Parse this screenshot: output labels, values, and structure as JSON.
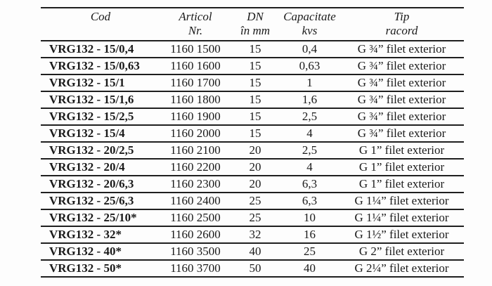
{
  "page": {
    "background": "#fdfdfd",
    "line_color": "#1f1f1f"
  },
  "table": {
    "columns": [
      {
        "line1": "Cod",
        "line2": ""
      },
      {
        "line1": "Articol",
        "line2": "Nr."
      },
      {
        "line1": "DN",
        "line2": "în mm"
      },
      {
        "line1": "Capacitate",
        "line2": "kvs"
      },
      {
        "line1": "Tip",
        "line2": "racord"
      }
    ],
    "rows": [
      {
        "cod": "VRG132 - 15/0,4",
        "articol": "1160 1500",
        "dn": "15",
        "kvs": "0,4",
        "tip": "G ¾” filet exterior"
      },
      {
        "cod": "VRG132 - 15/0,63",
        "articol": "1160 1600",
        "dn": "15",
        "kvs": "0,63",
        "tip": "G ¾” filet exterior"
      },
      {
        "cod": "VRG132 - 15/1",
        "articol": "1160 1700",
        "dn": "15",
        "kvs": "1",
        "tip": "G ¾” filet exterior"
      },
      {
        "cod": "VRG132 - 15/1,6",
        "articol": "1160 1800",
        "dn": "15",
        "kvs": "1,6",
        "tip": "G ¾” filet exterior"
      },
      {
        "cod": "VRG132 - 15/2,5",
        "articol": "1160 1900",
        "dn": "15",
        "kvs": "2,5",
        "tip": "G ¾” filet exterior"
      },
      {
        "cod": "VRG132 - 15/4",
        "articol": "1160 2000",
        "dn": "15",
        "kvs": "4",
        "tip": "G ¾” filet exterior"
      },
      {
        "cod": "VRG132 - 20/2,5",
        "articol": "1160 2100",
        "dn": "20",
        "kvs": "2,5",
        "tip": "G 1” filet exterior"
      },
      {
        "cod": "VRG132 - 20/4",
        "articol": "1160 2200",
        "dn": "20",
        "kvs": "4",
        "tip": "G 1” filet exterior"
      },
      {
        "cod": "VRG132 - 20/6,3",
        "articol": "1160 2300",
        "dn": "20",
        "kvs": "6,3",
        "tip": "G 1” filet exterior"
      },
      {
        "cod": "VRG132 - 25/6,3",
        "articol": "1160 2400",
        "dn": "25",
        "kvs": "6,3",
        "tip": "G 1¼” filet exterior"
      },
      {
        "cod": "VRG132 - 25/10*",
        "articol": "1160 2500",
        "dn": "25",
        "kvs": "10",
        "tip": "G 1¼” filet exterior"
      },
      {
        "cod": "VRG132 - 32*",
        "articol": "1160 2600",
        "dn": "32",
        "kvs": "16",
        "tip": "G 1½” filet exterior"
      },
      {
        "cod": "VRG132 - 40*",
        "articol": "1160 3500",
        "dn": "40",
        "kvs": "25",
        "tip": "G 2” filet exterior"
      },
      {
        "cod": "VRG132 - 50*",
        "articol": "1160 3700",
        "dn": "50",
        "kvs": "40",
        "tip": "G 2¼” filet exterior"
      }
    ]
  }
}
